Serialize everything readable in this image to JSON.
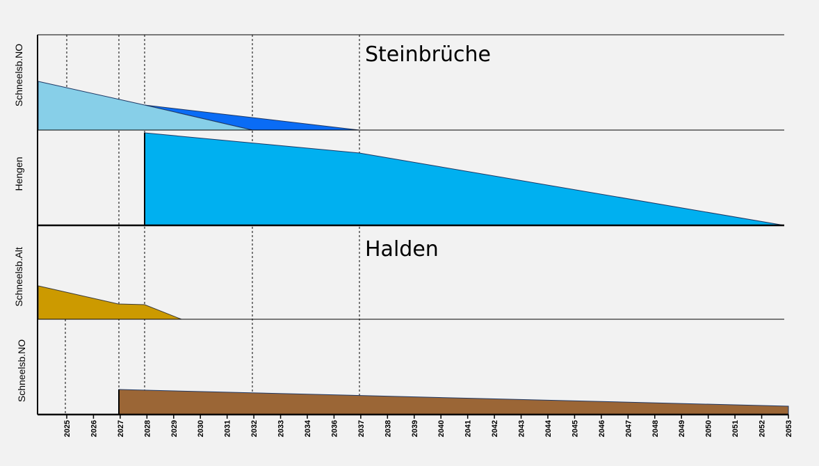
{
  "colors": {
    "background": "#f2f2f2",
    "schneelsb_no_light": "#87cfe8",
    "schneelsb_no_dark": "#0a6cf5",
    "hengen": "#00b0f0",
    "schneelsb_alt": "#cc9a00",
    "halden_schneelsb_no": "#9b6636"
  },
  "chart_data": {
    "type": "area",
    "x_ticks": [
      "2025",
      "2026",
      "2027",
      "2028",
      "2029",
      "2030",
      "2031",
      "2032",
      "2033",
      "2034",
      "2036",
      "2037",
      "2038",
      "2039",
      "2040",
      "2041",
      "2042",
      "2043",
      "2044",
      "2045",
      "2046",
      "2047",
      "2048",
      "2049",
      "2050",
      "2051",
      "2052",
      "2053"
    ],
    "x_range": [
      "2024",
      "2053"
    ],
    "markers": [
      "2025",
      "2027",
      "2028",
      "2032",
      "2037"
    ],
    "sections": [
      {
        "title": "Steinbrüche",
        "rows": [
          {
            "label": "Schneelsb.NO",
            "series": [
              {
                "color": "light",
                "points": [
                  [
                    "2024",
                    1.0
                  ],
                  [
                    "2028",
                    0.5
                  ],
                  [
                    "2032",
                    0
                  ]
                ]
              },
              {
                "color": "dark",
                "points": [
                  [
                    "2028",
                    0.5
                  ],
                  [
                    "2037",
                    0
                  ],
                  [
                    "2032",
                    0
                  ]
                ]
              }
            ]
          },
          {
            "label": "Hengen",
            "series": [
              {
                "color": "hengen",
                "points": [
                  [
                    "2028",
                    1.0
                  ],
                  [
                    "2037",
                    0.77
                  ],
                  [
                    "2053",
                    0
                  ]
                ]
              }
            ]
          }
        ]
      },
      {
        "title": "Halden",
        "rows": [
          {
            "label": "Schneelsb.Alt",
            "series": [
              {
                "color": "alt",
                "points": [
                  [
                    "2024",
                    1.0
                  ],
                  [
                    "2027",
                    0.45
                  ],
                  [
                    "2028",
                    0.43
                  ],
                  [
                    "2029",
                    0
                  ]
                ]
              }
            ]
          },
          {
            "label": "Schneelsb.NO",
            "series": [
              {
                "color": "brown",
                "points": [
                  [
                    "2027",
                    0.5
                  ],
                  [
                    "2053",
                    0.15
                  ]
                ]
              }
            ]
          }
        ]
      }
    ]
  }
}
